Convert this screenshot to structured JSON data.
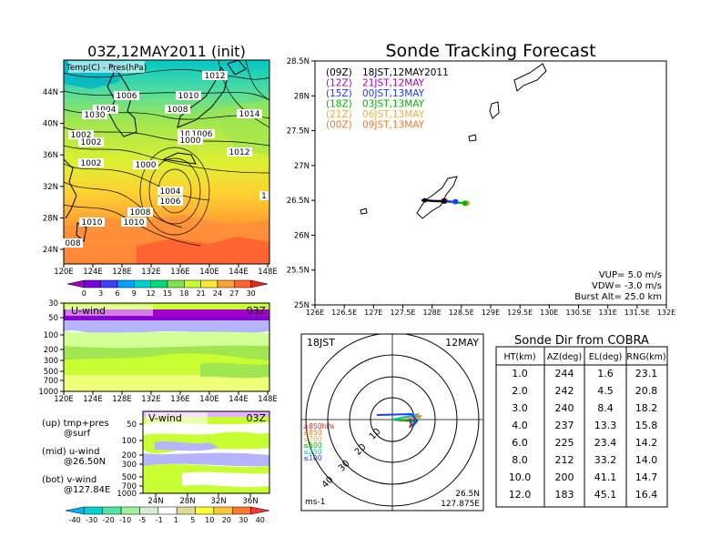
{
  "left_title": "03Z,12MAY2011 (init)",
  "main_title": "Sonde Tracking Forecast",
  "map_panel": {
    "label": "Temp(C) - Pres(hPa)",
    "x_ticks": [
      "120E",
      "124E",
      "128E",
      "132E",
      "136E",
      "140E",
      "144E",
      "148E"
    ],
    "y_ticks": [
      "24N",
      "28N",
      "32N",
      "36N",
      "40N",
      "44N"
    ],
    "pressure_labels": [
      "1012",
      "1006",
      "1010",
      "1004",
      "1030",
      "1008",
      "1014",
      "1002",
      "1004",
      "1002",
      "1006",
      "1000",
      "1012",
      "1000",
      "1004",
      "1006",
      "1008",
      "1010",
      "1002",
      "1010",
      "1",
      "008"
    ],
    "colorbar_ticks": [
      "0",
      "3",
      "6",
      "9",
      "12",
      "15",
      "18",
      "21",
      "24",
      "27",
      "30"
    ],
    "colorbar_colors": [
      "#a000c8",
      "#7800dc",
      "#4040ff",
      "#00a0ff",
      "#00d2d2",
      "#00dc78",
      "#78e650",
      "#c8ff32",
      "#ffe632",
      "#ffa032",
      "#ff6432",
      "#e62828"
    ]
  },
  "u_panel": {
    "label": "U-wind",
    "time": "03Z",
    "y_ticks": [
      "30",
      "50",
      "100",
      "200",
      "300",
      "500",
      "700",
      "1000"
    ],
    "x_ticks": [
      "120E",
      "124E",
      "128E",
      "132E",
      "136E",
      "140E",
      "144E",
      "148E"
    ]
  },
  "v_panel": {
    "label": "V-wind",
    "time": "03Z",
    "y_ticks": [
      "50",
      "100",
      "200",
      "300",
      "500",
      "700",
      "1000"
    ],
    "x_ticks": [
      "24N",
      "28N",
      "32N",
      "36N"
    ]
  },
  "notes": [
    {
      "line1": "(up) tmp+pres",
      "line2": "@surf"
    },
    {
      "line1": "(mid) u-wind",
      "line2": "@26.50N"
    },
    {
      "line1": "(bot) v-wind",
      "line2": "@127.84E"
    }
  ],
  "wind_colorbar": {
    "ticks": [
      "-40",
      "-30",
      "-20",
      "-10",
      "-5",
      "-1",
      "1",
      "5",
      "10",
      "20",
      "30",
      "40"
    ],
    "colors": [
      "#00b4ff",
      "#00d2d2",
      "#50e6a0",
      "#a0f0a0",
      "#d2f0d2",
      "#ffffff",
      "#dcdc96",
      "#ffff32",
      "#ffc832",
      "#ff7832",
      "#ff3232"
    ]
  },
  "tracking_map": {
    "legend": [
      {
        "code": "(09Z)",
        "text": "18JST,12MAY2011",
        "color": "#000000"
      },
      {
        "code": "(12Z)",
        "text": "21JST,12MAY",
        "color": "#a000c8"
      },
      {
        "code": "(15Z)",
        "text": "00JST,13MAY",
        "color": "#1e3cff"
      },
      {
        "code": "(18Z)",
        "text": "03JST,13MAY",
        "color": "#00b400"
      },
      {
        "code": "(21Z)",
        "text": "06JST,13MAY",
        "color": "#e6b43c"
      },
      {
        "code": "(00Z)",
        "text": "09JST,13MAY",
        "color": "#f07828"
      }
    ],
    "x_ticks": [
      "126E",
      "126.5E",
      "127E",
      "127.5E",
      "128E",
      "128.5E",
      "129E",
      "129.5E",
      "130E",
      "130.5E",
      "131E",
      "131.5E",
      "132E"
    ],
    "y_ticks": [
      "25N",
      "25.5N",
      "26N",
      "26.5N",
      "27N",
      "27.5N",
      "28N",
      "28.5N"
    ],
    "vup": "VUP=  5.0  m/s",
    "vdw": "VDW= -3.0  m/s",
    "burst": "Burst Alt= 25.0  km"
  },
  "polar_plot": {
    "left_label": "18JST",
    "right_label": "12MAY",
    "range_labels": [
      "10",
      "20",
      "30",
      "40"
    ],
    "legend_levels": [
      {
        "text": "≥850hPa",
        "color": "#e62828"
      },
      {
        "text": "≤850",
        "color": "#f07828"
      },
      {
        "text": "≤700",
        "color": "#e6b43c"
      },
      {
        "text": "≤500",
        "color": "#00b400"
      },
      {
        "text": "≤250",
        "color": "#00c8c8"
      },
      {
        "text": "≤100",
        "color": "#1e3cff"
      }
    ],
    "units": "ms-1",
    "location_lat": "26.5N",
    "location_lon": "127.875E"
  },
  "sonde_table": {
    "title": "Sonde Dir from COBRA",
    "headers": [
      "HT(km)",
      "AZ(deg)",
      "EL(deg)",
      "RNG(km)"
    ],
    "rows": [
      [
        "1.0",
        "244",
        "1.6",
        "23.1"
      ],
      [
        "2.0",
        "242",
        "4.5",
        "20.8"
      ],
      [
        "3.0",
        "240",
        "8.4",
        "18.2"
      ],
      [
        "4.0",
        "237",
        "13.3",
        "15.8"
      ],
      [
        "6.0",
        "225",
        "23.4",
        "14.2"
      ],
      [
        "8.0",
        "212",
        "33.2",
        "14.0"
      ],
      [
        "10.0",
        "200",
        "41.1",
        "14.7"
      ],
      [
        "12.0",
        "183",
        "45.1",
        "16.4"
      ]
    ]
  },
  "chart_data": [
    {
      "type": "heatmap",
      "title": "03Z,12MAY2011 (init)",
      "variable": "Temp(C) - Pres(hPa)",
      "x_range": [
        "120E",
        "150E"
      ],
      "y_range": [
        "22N",
        "48N"
      ],
      "colorbar_levels": [
        0,
        3,
        6,
        9,
        12,
        15,
        18,
        21,
        24,
        27,
        30
      ]
    },
    {
      "type": "heatmap",
      "variable": "U-wind",
      "y_levels_hPa": [
        30,
        50,
        100,
        200,
        300,
        500,
        700,
        1000
      ],
      "x_range": [
        "120E",
        "150E"
      ]
    },
    {
      "type": "heatmap",
      "variable": "V-wind",
      "y_levels_hPa": [
        50,
        100,
        200,
        300,
        500,
        700,
        1000
      ],
      "x_range": [
        "22N",
        "38N"
      ],
      "colorbar_levels": [
        -40,
        -30,
        -20,
        -10,
        -5,
        -1,
        1,
        5,
        10,
        20,
        30,
        40
      ]
    },
    {
      "type": "line",
      "title": "Sonde Tracking Forecast",
      "xlim": [
        126,
        132
      ],
      "ylim": [
        25,
        28.5
      ],
      "launch": {
        "lon": 127.875,
        "lat": 26.5
      },
      "series": [
        {
          "name": "(09Z)",
          "color": "#000000",
          "x": [
            127.82,
            127.9,
            128.0,
            128.1,
            128.2
          ],
          "y": [
            26.5,
            26.5,
            26.49,
            26.49,
            26.49
          ]
        },
        {
          "name": "(12Z)",
          "color": "#a000c8",
          "x": [
            127.82,
            127.9,
            128.0,
            128.1,
            128.22
          ],
          "y": [
            26.5,
            26.5,
            26.49,
            26.49,
            26.49
          ]
        },
        {
          "name": "(15Z)",
          "color": "#1e3cff",
          "x": [
            127.82,
            127.95,
            128.1,
            128.25,
            128.4
          ],
          "y": [
            26.5,
            26.5,
            26.49,
            26.49,
            26.48
          ]
        },
        {
          "name": "(18Z)",
          "color": "#00b400",
          "x": [
            127.82,
            128.0,
            128.2,
            128.4,
            128.56
          ],
          "y": [
            26.5,
            26.49,
            26.48,
            26.47,
            26.46
          ]
        },
        {
          "name": "(21Z)",
          "color": "#e6b43c",
          "x": [
            127.82,
            128.0,
            128.2,
            128.4,
            128.6
          ],
          "y": [
            26.5,
            26.49,
            26.48,
            26.47,
            26.46
          ]
        },
        {
          "name": "(00Z)",
          "color": "#f07828",
          "x": [
            127.82,
            128.0,
            128.2,
            128.4,
            128.6
          ],
          "y": [
            26.5,
            26.49,
            26.48,
            26.47,
            26.46
          ]
        }
      ]
    },
    {
      "type": "scatter",
      "title": "Sonde Dir from COBRA",
      "columns": [
        "HT(km)",
        "AZ(deg)",
        "EL(deg)",
        "RNG(km)"
      ],
      "values": [
        [
          1.0,
          244,
          1.6,
          23.1
        ],
        [
          2.0,
          242,
          4.5,
          20.8
        ],
        [
          3.0,
          240,
          8.4,
          18.2
        ],
        [
          4.0,
          237,
          13.3,
          15.8
        ],
        [
          6.0,
          225,
          23.4,
          14.2
        ],
        [
          8.0,
          212,
          33.2,
          14.0
        ],
        [
          10.0,
          200,
          41.1,
          14.7
        ],
        [
          12.0,
          183,
          45.1,
          16.4
        ]
      ]
    }
  ]
}
